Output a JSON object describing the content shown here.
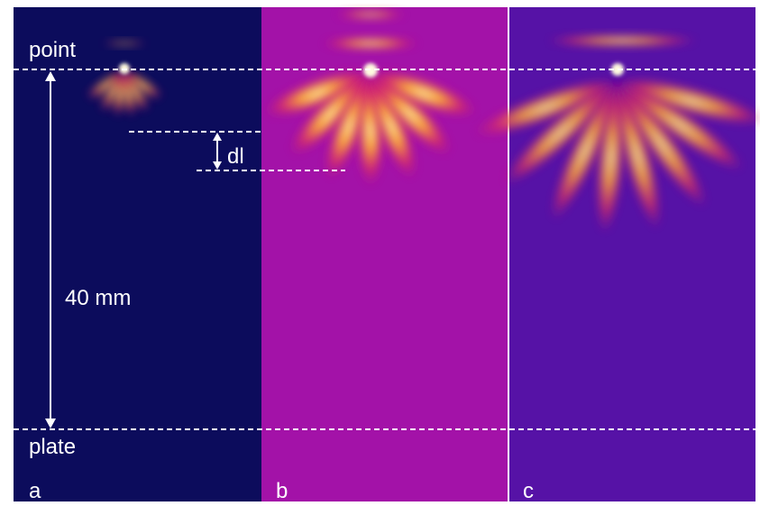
{
  "annotations": {
    "top_electrode": "point",
    "bottom_electrode": "plate",
    "gap_length": "40 mm",
    "step_length": "dl"
  },
  "panels": [
    {
      "label": "a"
    },
    {
      "label": "b"
    },
    {
      "label": "c"
    }
  ]
}
